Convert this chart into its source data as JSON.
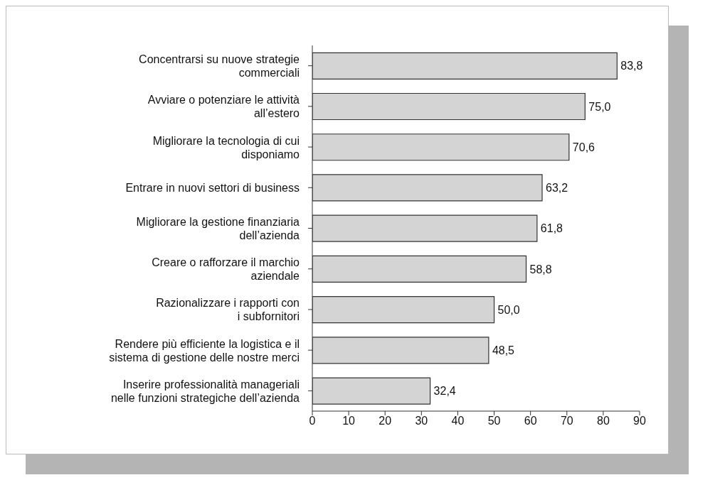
{
  "chart_data": {
    "type": "bar",
    "orientation": "horizontal",
    "categories": [
      "Concentrarsi su nuove strategie\ncommerciali",
      "Avviare o potenziare le attività\nall’estero",
      "Migliorare la tecnologia di cui\ndisponiamo",
      "Entrare in nuovi settori di business",
      "Migliorare la gestione finanziaria\ndell’azienda",
      "Creare o rafforzare il marchio\naziendale",
      "Razionalizzare i rapporti con\ni subfornitori",
      "Rendere più efficiente la logistica e il\nsistema di gestione delle nostre merci",
      "Inserire professionalità manageriali\nnelle funzioni strategiche dell’azienda"
    ],
    "values": [
      83.8,
      75.0,
      70.6,
      63.2,
      61.8,
      58.8,
      50.0,
      48.5,
      32.4
    ],
    "value_labels": [
      "83,8",
      "75,0",
      "70,6",
      "63,2",
      "61,8",
      "58,8",
      "50,0",
      "48,5",
      "32,4"
    ],
    "color": "#d4d4d4",
    "xlim": [
      0,
      90
    ],
    "xticks": [
      0,
      10,
      20,
      30,
      40,
      50,
      60,
      70,
      80,
      90
    ],
    "grid": false,
    "legend": false
  }
}
